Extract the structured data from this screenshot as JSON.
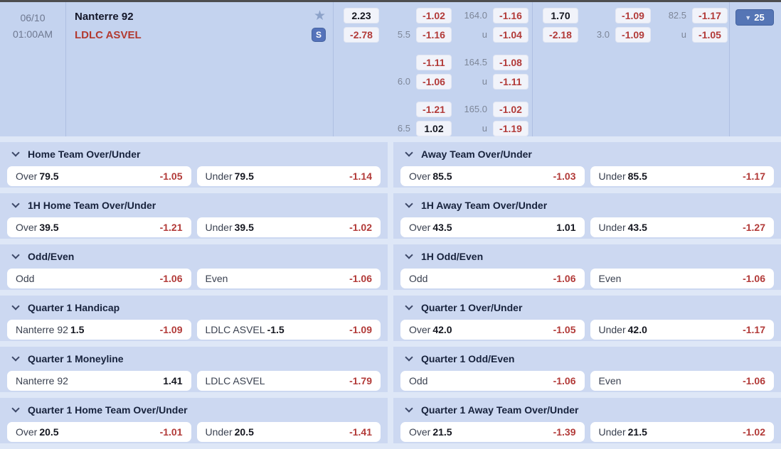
{
  "colors": {
    "top_bg": "#c4d3ef",
    "panel_bg": "#ccd8f1",
    "page_bg": "#dee7f7",
    "odds_negative_red": "#b23a38",
    "odds_positive_black": "#14161f",
    "away_team_red": "#b23a30",
    "accent_blue": "#5575b5",
    "muted_label_gray": "#7d8698"
  },
  "ui_glyphs": {
    "favorite_star": "★",
    "stats_letter": "S",
    "expand_caret": "▼"
  },
  "event": {
    "date": "06/10",
    "time": "01:00AM",
    "home_team": "Nanterre 92",
    "away_team": "LDLC ASVEL",
    "expand_button": {
      "label": "25"
    },
    "odds_groups": [
      {
        "name": "full-game",
        "lines": [
          {
            "moneyline": {
              "home": "2.23",
              "away": "-2.78"
            },
            "spread": {
              "handicap": "5.5",
              "home": "-1.02",
              "away": "-1.16"
            },
            "total": {
              "line": "164.0",
              "over": "-1.16",
              "under_label": "u",
              "under": "-1.04"
            }
          },
          {
            "moneyline": null,
            "spread": {
              "handicap": "6.0",
              "home": "-1.11",
              "away": "-1.06"
            },
            "total": {
              "line": "164.5",
              "over": "-1.08",
              "under_label": "u",
              "under": "-1.11"
            }
          },
          {
            "moneyline": null,
            "spread": {
              "handicap": "6.5",
              "home": "-1.21",
              "away": "1.02"
            },
            "total": {
              "line": "165.0",
              "over": "-1.02",
              "under_label": "u",
              "under": "-1.19"
            }
          }
        ]
      },
      {
        "name": "first-half",
        "lines": [
          {
            "moneyline": {
              "home": "1.70",
              "away": "-2.18"
            },
            "spread": {
              "handicap": "3.0",
              "home": "-1.09",
              "away": "-1.09"
            },
            "total": {
              "line": "82.5",
              "over": "-1.17",
              "under_label": "u",
              "under": "-1.05"
            }
          }
        ]
      }
    ]
  },
  "markets": {
    "panels": [
      {
        "title": "Home Team Over/Under",
        "selections": [
          {
            "label": "Over",
            "line": "79.5",
            "odds": "-1.05"
          },
          {
            "label": "Under",
            "line": "79.5",
            "odds": "-1.14"
          }
        ]
      },
      {
        "title": "Away Team Over/Under",
        "selections": [
          {
            "label": "Over",
            "line": "85.5",
            "odds": "-1.03"
          },
          {
            "label": "Under",
            "line": "85.5",
            "odds": "-1.17"
          }
        ]
      },
      {
        "title": "1H Home Team Over/Under",
        "selections": [
          {
            "label": "Over",
            "line": "39.5",
            "odds": "-1.21"
          },
          {
            "label": "Under",
            "line": "39.5",
            "odds": "-1.02"
          }
        ]
      },
      {
        "title": "1H Away Team Over/Under",
        "selections": [
          {
            "label": "Over",
            "line": "43.5",
            "odds": "1.01"
          },
          {
            "label": "Under",
            "line": "43.5",
            "odds": "-1.27"
          }
        ]
      },
      {
        "title": "Odd/Even",
        "selections": [
          {
            "label": "Odd",
            "line": "",
            "odds": "-1.06"
          },
          {
            "label": "Even",
            "line": "",
            "odds": "-1.06"
          }
        ]
      },
      {
        "title": "1H Odd/Even",
        "selections": [
          {
            "label": "Odd",
            "line": "",
            "odds": "-1.06"
          },
          {
            "label": "Even",
            "line": "",
            "odds": "-1.06"
          }
        ]
      },
      {
        "title": "Quarter 1 Handicap",
        "selections": [
          {
            "label": "Nanterre 92",
            "line": "1.5",
            "odds": "-1.09"
          },
          {
            "label": "LDLC ASVEL",
            "line": "-1.5",
            "odds": "-1.09"
          }
        ]
      },
      {
        "title": "Quarter 1 Over/Under",
        "selections": [
          {
            "label": "Over",
            "line": "42.0",
            "odds": "-1.05"
          },
          {
            "label": "Under",
            "line": "42.0",
            "odds": "-1.17"
          }
        ]
      },
      {
        "title": "Quarter 1 Moneyline",
        "selections": [
          {
            "label": "Nanterre 92",
            "line": "",
            "odds": "1.41"
          },
          {
            "label": "LDLC ASVEL",
            "line": "",
            "odds": "-1.79"
          }
        ]
      },
      {
        "title": "Quarter 1 Odd/Even",
        "selections": [
          {
            "label": "Odd",
            "line": "",
            "odds": "-1.06"
          },
          {
            "label": "Even",
            "line": "",
            "odds": "-1.06"
          }
        ]
      },
      {
        "title": "Quarter 1 Home Team Over/Under",
        "selections": [
          {
            "label": "Over",
            "line": "20.5",
            "odds": "-1.01"
          },
          {
            "label": "Under",
            "line": "20.5",
            "odds": "-1.41"
          }
        ]
      },
      {
        "title": "Quarter 1 Away Team Over/Under",
        "selections": [
          {
            "label": "Over",
            "line": "21.5",
            "odds": "-1.39"
          },
          {
            "label": "Under",
            "line": "21.5",
            "odds": "-1.02"
          }
        ]
      }
    ]
  }
}
